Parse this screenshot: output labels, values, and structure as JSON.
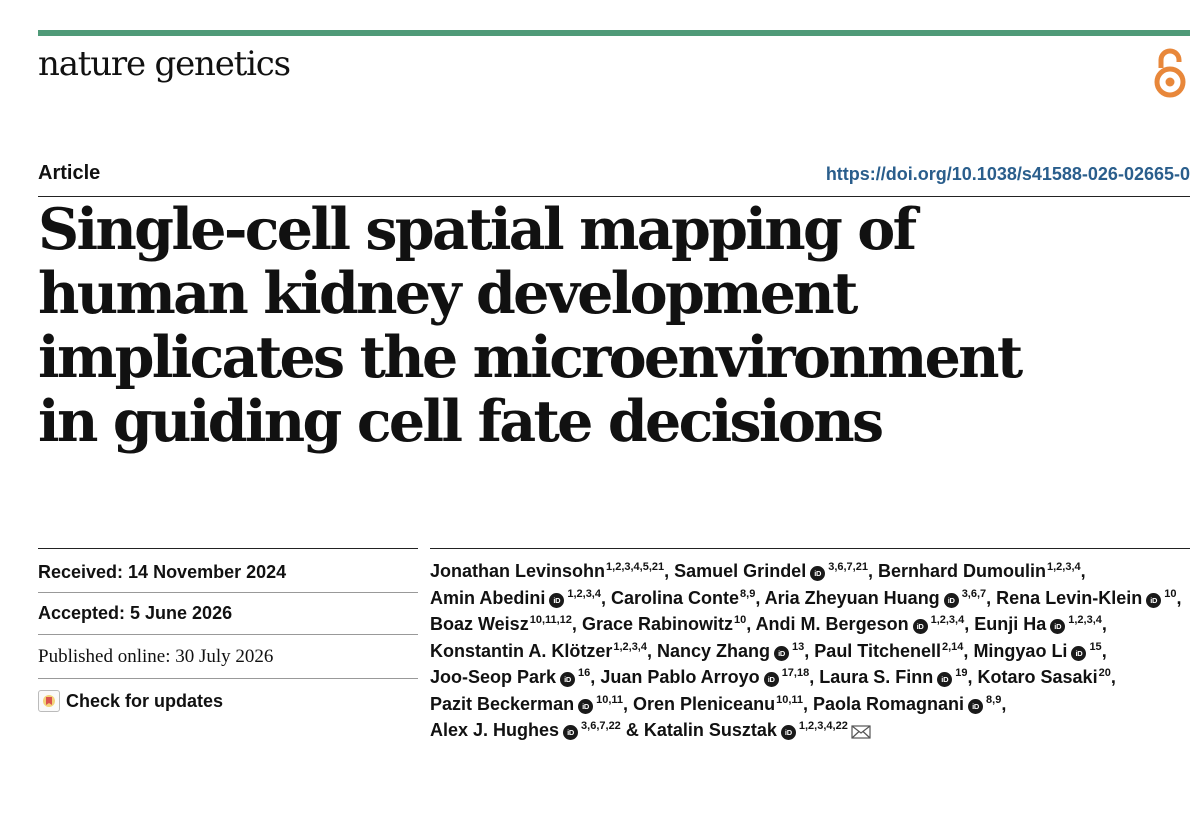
{
  "header": {
    "journal_name": "nature genetics",
    "open_access_icon": "open-access-icon",
    "accent_color": "#4f9a78",
    "open_access_color": "#e8873a"
  },
  "article": {
    "type": "Article",
    "doi": "https://doi.org/10.1038/s41588-026-02665-0",
    "title": "Single-cell spatial mapping of human kidney development implicates the microenvironment in guiding cell fate decisions"
  },
  "meta": {
    "received": "Received: 14 November 2024",
    "accepted": "Accepted: 5 June 2026",
    "published": "Published online: 30 July 2026",
    "check_updates": "Check for updates"
  },
  "authors": [
    {
      "name": "Jonathan Levinsohn",
      "orcid": false,
      "affil": "1,2,3,4,5,21",
      "sep": ", "
    },
    {
      "name": "Samuel Grindel",
      "orcid": true,
      "affil": "3,6,7,21",
      "sep": ", "
    },
    {
      "name": "Bernhard Dumoulin",
      "orcid": false,
      "affil": "1,2,3,4",
      "sep": ", "
    },
    {
      "name": "Amin Abedini",
      "orcid": true,
      "affil": "1,2,3,4",
      "sep": ", "
    },
    {
      "name": "Carolina Conte",
      "orcid": false,
      "affil": "8,9",
      "sep": ", "
    },
    {
      "name": "Aria Zheyuan Huang",
      "orcid": true,
      "affil": "3,6,7",
      "sep": ", "
    },
    {
      "name": "Rena Levin-Klein",
      "orcid": true,
      "affil": "10",
      "sep": ", "
    },
    {
      "name": "Boaz Weisz",
      "orcid": false,
      "affil": "10,11,12",
      "sep": ", "
    },
    {
      "name": "Grace Rabinowitz",
      "orcid": false,
      "affil": "10",
      "sep": ", "
    },
    {
      "name": "Andi M. Bergeson",
      "orcid": true,
      "affil": "1,2,3,4",
      "sep": ", "
    },
    {
      "name": "Eunji Ha",
      "orcid": true,
      "affil": "1,2,3,4",
      "sep": ", "
    },
    {
      "name": "Konstantin A. Klötzer",
      "orcid": false,
      "affil": "1,2,3,4",
      "sep": ", "
    },
    {
      "name": "Nancy Zhang",
      "orcid": true,
      "affil": "13",
      "sep": ", "
    },
    {
      "name": "Paul Titchenell",
      "orcid": false,
      "affil": "2,14",
      "sep": ", "
    },
    {
      "name": "Mingyao Li",
      "orcid": true,
      "affil": "15",
      "sep": ", "
    },
    {
      "name": "Joo-Seop Park",
      "orcid": true,
      "affil": "16",
      "sep": ", "
    },
    {
      "name": "Juan Pablo Arroyo",
      "orcid": true,
      "affil": "17,18",
      "sep": ", "
    },
    {
      "name": "Laura S. Finn",
      "orcid": true,
      "affil": "19",
      "sep": ", "
    },
    {
      "name": "Kotaro Sasaki",
      "orcid": false,
      "affil": "20",
      "sep": ", "
    },
    {
      "name": "Pazit Beckerman",
      "orcid": true,
      "affil": "10,11",
      "sep": ", "
    },
    {
      "name": "Oren Pleniceanu",
      "orcid": false,
      "affil": "10,11",
      "sep": ", "
    },
    {
      "name": "Paola Romagnani",
      "orcid": true,
      "affil": "8,9",
      "sep": ", "
    },
    {
      "name": "Alex J. Hughes",
      "orcid": true,
      "affil": "3,6,7,22",
      "sep": " & "
    },
    {
      "name": "Katalin Susztak",
      "orcid": true,
      "affil": "1,2,3,4,22",
      "sep": "",
      "email": true
    }
  ],
  "orcid_label": "iD"
}
